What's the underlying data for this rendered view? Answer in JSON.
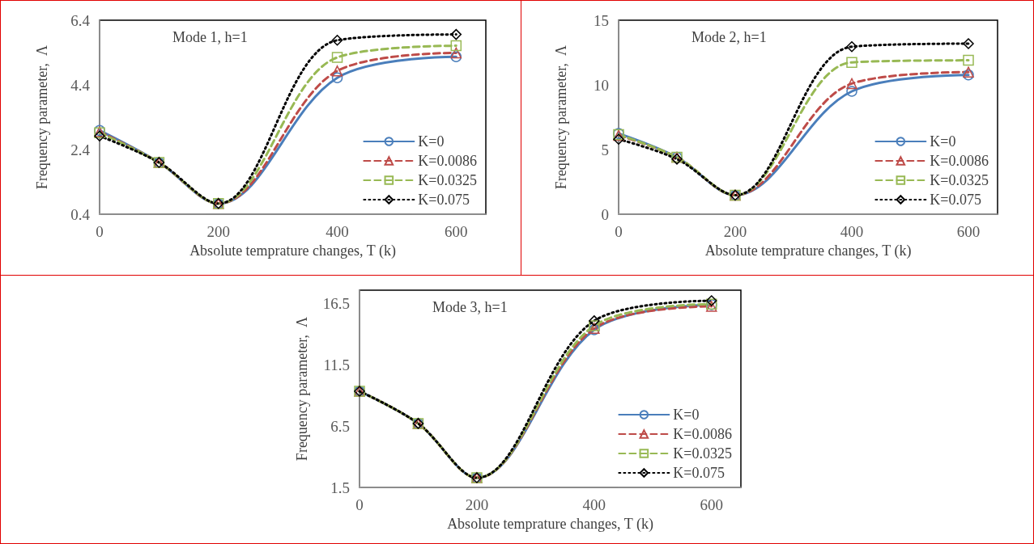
{
  "chart_data": [
    {
      "type": "line",
      "annotations": [
        "Mode 1, h=1"
      ],
      "xlabel": "Absolute temprature changes, T (k)",
      "ylabel": "Frequency parameter,  Λ",
      "x": [
        0,
        100,
        200,
        400,
        600
      ],
      "xlim": [
        0,
        650
      ],
      "xticks": [
        0,
        200,
        400,
        600
      ],
      "ylim": [
        0.4,
        6.4
      ],
      "yticks": [
        0.4,
        2.4,
        4.4,
        6.4
      ],
      "grid": false,
      "legend": "bottom right",
      "series": [
        {
          "name": "K=0",
          "color": "#4a7ebb",
          "marker": "circle",
          "line_style": "solid",
          "values": [
            2.99,
            2.0,
            0.73,
            4.62,
            5.27
          ]
        },
        {
          "name": "K=0.0086",
          "color": "#be4b48",
          "marker": "triangle",
          "line_style": "dashed",
          "values": [
            2.95,
            2.0,
            0.73,
            4.83,
            5.39
          ]
        },
        {
          "name": "K=0.0325",
          "color": "#98b954",
          "marker": "square",
          "line_style": "dashed",
          "values": [
            2.92,
            2.0,
            0.73,
            5.25,
            5.61
          ]
        },
        {
          "name": "K=0.075",
          "color": "#000000",
          "marker": "diamond",
          "line_style": "dotted",
          "values": [
            2.82,
            2.0,
            0.73,
            5.78,
            5.96
          ]
        }
      ]
    },
    {
      "type": "line",
      "annotations": [
        "Mode 2, h=1"
      ],
      "xlabel": "Absolute temprature changes, T (k)",
      "ylabel": "Frequency parameter,  Λ",
      "x": [
        0,
        100,
        200,
        400,
        600
      ],
      "xlim": [
        0,
        650
      ],
      "xticks": [
        0,
        200,
        400,
        600
      ],
      "ylim": [
        0,
        15
      ],
      "yticks": [
        0,
        5,
        10,
        15
      ],
      "grid": false,
      "legend": "bottom right",
      "series": [
        {
          "name": "K=0",
          "color": "#4a7ebb",
          "marker": "circle",
          "line_style": "solid",
          "values": [
            6.24,
            4.4,
            1.47,
            9.5,
            10.77
          ]
        },
        {
          "name": "K=0.0086",
          "color": "#be4b48",
          "marker": "triangle",
          "line_style": "dashed",
          "values": [
            6.1,
            4.4,
            1.47,
            10.1,
            10.99
          ]
        },
        {
          "name": "K=0.0325",
          "color": "#98b954",
          "marker": "square",
          "line_style": "dashed",
          "values": [
            6.15,
            4.4,
            1.47,
            11.74,
            11.9
          ]
        },
        {
          "name": "K=0.075",
          "color": "#000000",
          "marker": "diamond",
          "line_style": "dotted",
          "values": [
            5.8,
            4.26,
            1.47,
            12.95,
            13.19
          ]
        }
      ]
    },
    {
      "type": "line",
      "annotations": [
        "Mode 3, h=1"
      ],
      "xlabel": "Absolute temprature changes, T (k)",
      "ylabel": "Frequency parameter,  Λ",
      "x": [
        0,
        100,
        200,
        400,
        600
      ],
      "xlim": [
        0,
        650
      ],
      "xticks": [
        0,
        200,
        400,
        600
      ],
      "ylim": [
        1.5,
        17.6
      ],
      "yticks": [
        1.5,
        6.5,
        11.5,
        16.5
      ],
      "grid": false,
      "legend": "bottom right",
      "series": [
        {
          "name": "K=0",
          "color": "#4a7ebb",
          "marker": "circle",
          "line_style": "solid",
          "values": [
            9.35,
            6.72,
            2.29,
            14.37,
            16.42
          ]
        },
        {
          "name": "K=0.0086",
          "color": "#be4b48",
          "marker": "triangle",
          "line_style": "dashed",
          "values": [
            9.35,
            6.72,
            2.29,
            14.48,
            16.28
          ]
        },
        {
          "name": "K=0.0325",
          "color": "#98b954",
          "marker": "square",
          "line_style": "dashed",
          "values": [
            9.35,
            6.72,
            2.29,
            14.7,
            16.46
          ]
        },
        {
          "name": "K=0.075",
          "color": "#000000",
          "marker": "diamond",
          "line_style": "dotted",
          "values": [
            9.35,
            6.72,
            2.29,
            15.1,
            16.74
          ]
        }
      ]
    }
  ]
}
